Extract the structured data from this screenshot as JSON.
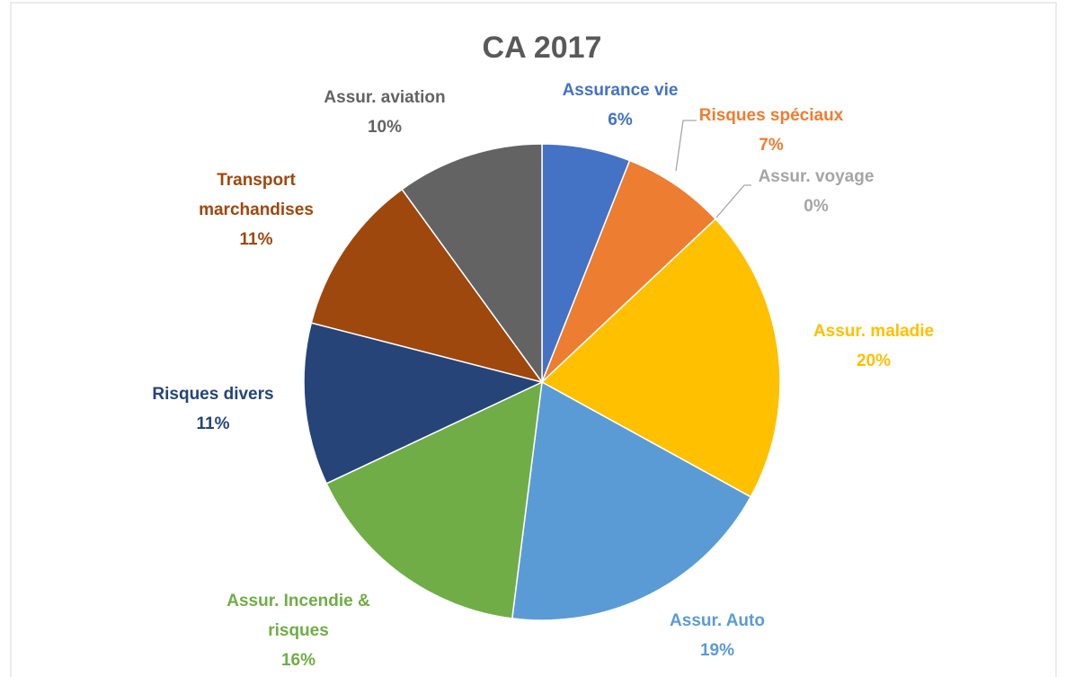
{
  "chart_data": {
    "type": "pie",
    "title": "CA 2017",
    "categories": [
      "Assurance vie",
      "Risques spéciaux",
      "Assur. voyage",
      "Assur. maladie",
      "Assur. Auto",
      "Assur. Incendie & risques",
      "Risques divers",
      "Transport marchandises",
      "Assur. aviation"
    ],
    "values": [
      6,
      7,
      0,
      20,
      19,
      16,
      11,
      11,
      10
    ],
    "value_labels": [
      "6%",
      "7%",
      "0%",
      "20%",
      "19%",
      "16%",
      "11%",
      "11%",
      "10%"
    ],
    "colors": [
      "#4472c4",
      "#ed7d31",
      "#a5a5a5",
      "#ffc000",
      "#5b9bd5",
      "#70ad47",
      "#264478",
      "#9e480e",
      "#636363"
    ]
  }
}
